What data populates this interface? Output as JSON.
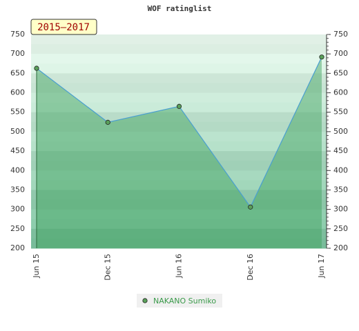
{
  "chart_data": {
    "type": "line",
    "title": "WOF ratinglist",
    "badge": "2015–2017",
    "categories": [
      "Jun 15",
      "Dec 15",
      "Jun 16",
      "Dec 16",
      "Jun 17"
    ],
    "series": [
      {
        "name": "NAKANO Sumiko",
        "color": "#4a9fd0",
        "values": [
          663,
          524,
          565,
          306,
          692
        ]
      }
    ],
    "ylim": [
      200,
      750
    ],
    "yticks": [
      200,
      250,
      300,
      350,
      400,
      450,
      500,
      550,
      600,
      650,
      700,
      750
    ],
    "grid": false,
    "legend": "bottom"
  }
}
